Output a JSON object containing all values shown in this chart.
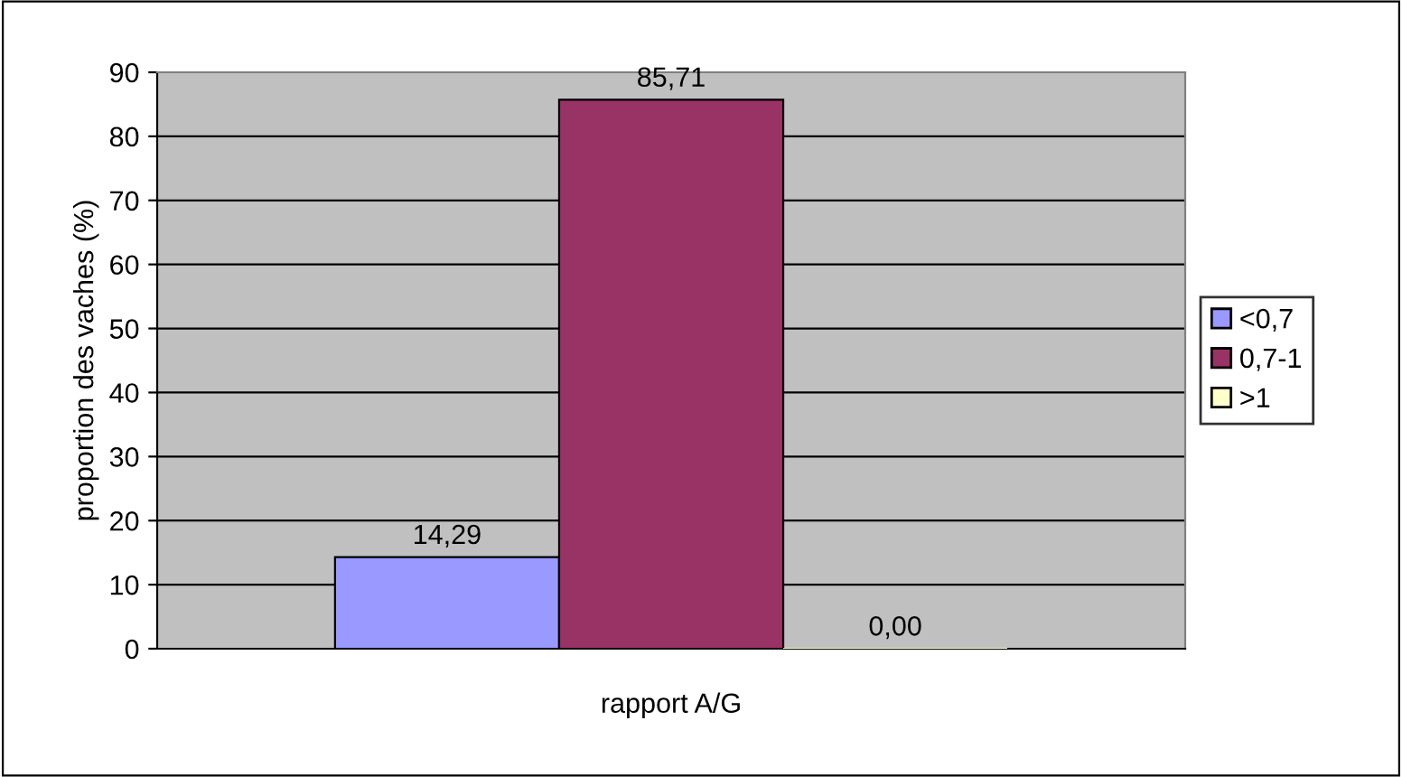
{
  "chart_data": {
    "type": "bar",
    "xlabel": "rapport A/G",
    "ylabel": "proportion des vaches (%)",
    "categories": [
      null
    ],
    "series": [
      {
        "name": "<0,7",
        "color": "#9999ff",
        "values": [
          14.29
        ],
        "value_labels": [
          "14,29"
        ]
      },
      {
        "name": "0,7-1",
        "color": "#993366",
        "values": [
          85.71
        ],
        "value_labels": [
          "85,71"
        ]
      },
      {
        "name": ">1",
        "color": "#ffffcc",
        "values": [
          0.0
        ],
        "value_labels": [
          "0,00"
        ]
      }
    ],
    "ylim": [
      0,
      90
    ],
    "yticks": [
      0,
      10,
      20,
      30,
      40,
      50,
      60,
      70,
      80,
      90
    ],
    "grid": "y",
    "legend": "right"
  }
}
